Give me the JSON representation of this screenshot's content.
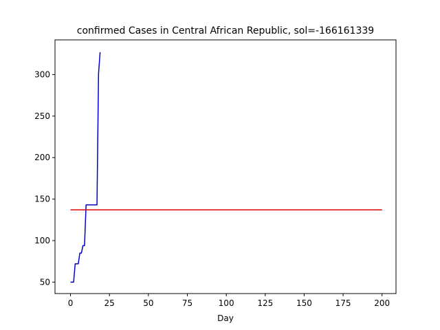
{
  "chart_data": {
    "type": "line",
    "title": "confirmed Cases in Central African Republic, sol=-166161339",
    "xlabel": "Day",
    "ylabel": "",
    "xlim": [
      -9.95,
      208.95
    ],
    "ylim": [
      36.2,
      341.8
    ],
    "xticks": [
      0,
      25,
      50,
      75,
      100,
      125,
      150,
      175,
      200
    ],
    "yticks": [
      50,
      100,
      150,
      200,
      250,
      300
    ],
    "grid": false,
    "series": [
      {
        "color": "#0000cc",
        "x": [
          0,
          1,
          2,
          3,
          4,
          5,
          6,
          7,
          8,
          9,
          10,
          11,
          12,
          13,
          14,
          15,
          16,
          17,
          18,
          19
        ],
        "y": [
          50,
          50,
          50,
          72,
          72,
          72,
          85,
          85,
          94,
          94,
          143,
          143,
          143,
          143,
          143,
          143,
          143,
          143,
          301,
          327
        ]
      },
      {
        "color": "#dd0000",
        "x": [
          0,
          200
        ],
        "y": [
          137,
          137
        ]
      }
    ]
  }
}
